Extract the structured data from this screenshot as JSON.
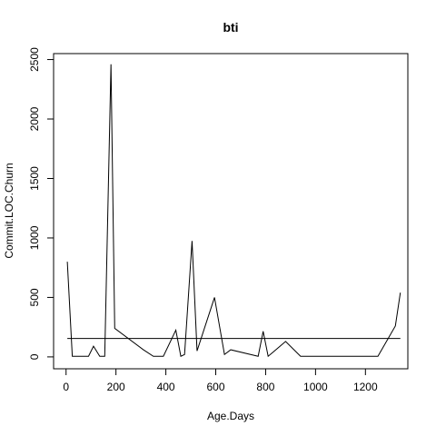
{
  "chart_data": {
    "type": "line",
    "title": "bti",
    "xlabel": "Age.Days",
    "ylabel": "Commit.LOC.Churn",
    "xlim": [
      -50,
      1370
    ],
    "ylim": [
      -100,
      2550
    ],
    "x_ticks": [
      0,
      200,
      400,
      600,
      800,
      1000,
      1200
    ],
    "y_ticks": [
      0,
      500,
      1000,
      1500,
      2000,
      2500
    ],
    "grid": false,
    "series": [
      {
        "x": [
          5,
          25,
          90,
          110,
          135,
          155,
          180,
          195,
          310,
          350,
          390,
          440,
          460,
          475,
          505,
          525,
          595,
          635,
          660,
          770,
          790,
          810,
          830,
          880,
          940,
          1250,
          1320,
          1340
        ],
        "y": [
          800,
          5,
          5,
          90,
          5,
          5,
          2460,
          240,
          60,
          5,
          5,
          225,
          5,
          20,
          975,
          50,
          500,
          20,
          60,
          5,
          215,
          5,
          40,
          130,
          5,
          5,
          260,
          540
        ]
      }
    ],
    "reference_line": {
      "y": 155
    }
  }
}
